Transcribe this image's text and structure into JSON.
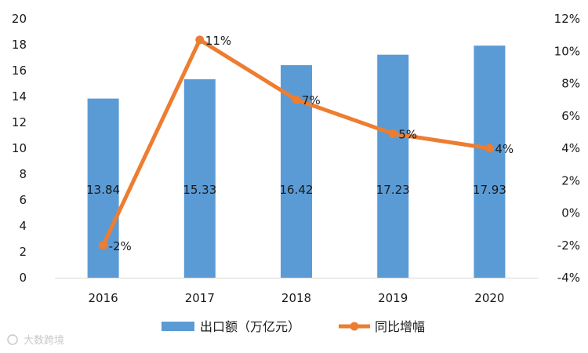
{
  "chart_data": {
    "type": "bar+line",
    "categories": [
      "2016",
      "2017",
      "2018",
      "2019",
      "2020"
    ],
    "series": [
      {
        "name": "出口额（万亿元）",
        "type": "bar",
        "axis": "left",
        "values": [
          13.84,
          15.33,
          16.42,
          17.23,
          17.93
        ],
        "labels": [
          "13.84",
          "15.33",
          "16.42",
          "17.23",
          "17.93"
        ],
        "color": "#5b9bd5"
      },
      {
        "name": "同比增幅",
        "type": "line",
        "axis": "right",
        "values": [
          -2,
          10.7,
          7,
          4.9,
          4
        ],
        "labels": [
          "-2%",
          "11%",
          "7%",
          "5%",
          "4%"
        ],
        "color": "#ed7d31"
      }
    ],
    "y_left": {
      "min": 0,
      "max": 20,
      "ticks": [
        "0",
        "2",
        "4",
        "6",
        "8",
        "10",
        "12",
        "14",
        "16",
        "18",
        "20"
      ]
    },
    "y_right": {
      "min": -4,
      "max": 12,
      "ticks": [
        "-4%",
        "-2%",
        "0%",
        "2%",
        "4%",
        "6%",
        "8%",
        "10%",
        "12%"
      ]
    },
    "grid": false,
    "legend": "bottom"
  },
  "watermark": "大数跨境",
  "colors": {
    "axis": "#d9d9d9",
    "text": "#1a1a1a"
  }
}
